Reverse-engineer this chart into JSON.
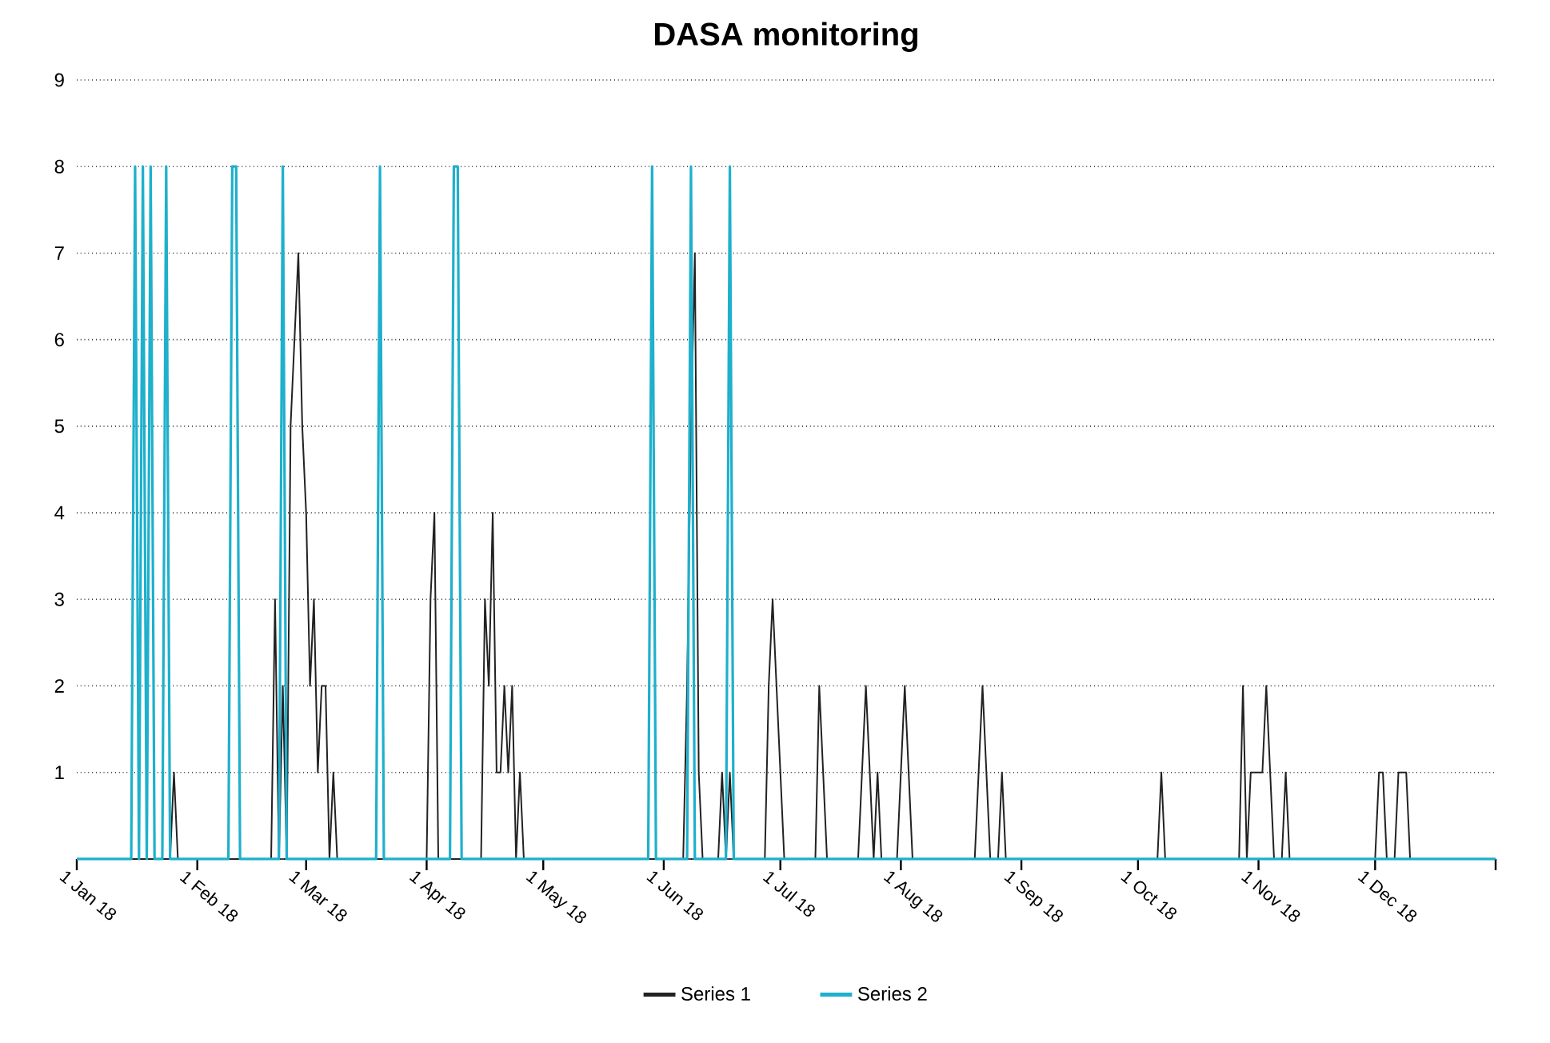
{
  "chart_data": {
    "type": "line",
    "title": "DASA monitoring",
    "xlim": [
      "2018-01-01",
      "2019-01-01"
    ],
    "xticks": [
      {
        "value": "2018-01-01",
        "label": "1 Jan 18"
      },
      {
        "value": "2018-02-01",
        "label": "1 Feb 18"
      },
      {
        "value": "2018-03-01",
        "label": "1 Mar 18"
      },
      {
        "value": "2018-04-01",
        "label": "1 Apr 18"
      },
      {
        "value": "2018-05-01",
        "label": "1 May 18"
      },
      {
        "value": "2018-06-01",
        "label": "1 Jun 18"
      },
      {
        "value": "2018-07-01",
        "label": "1 Jul 18"
      },
      {
        "value": "2018-08-01",
        "label": "1 Aug 18"
      },
      {
        "value": "2018-09-01",
        "label": "1 Sep 18"
      },
      {
        "value": "2018-10-01",
        "label": "1 Oct 18"
      },
      {
        "value": "2018-11-01",
        "label": "1 Nov 18"
      },
      {
        "value": "2018-12-01",
        "label": "1 Dec 18"
      },
      {
        "value": "2019-01-01",
        "label": null
      }
    ],
    "ylim": [
      0,
      9
    ],
    "yticks": [
      {
        "value": 0,
        "label": null
      },
      1,
      2,
      3,
      4,
      5,
      6,
      7,
      8,
      9
    ],
    "grid": "y",
    "legend": "bottom",
    "series": [
      {
        "name": "Series 1",
        "color": "#222222",
        "x": [
          "2018-01-01",
          "2018-01-25",
          "2018-01-26",
          "2018-01-27",
          "2018-02-20",
          "2018-02-21",
          "2018-02-22",
          "2018-02-23",
          "2018-02-24",
          "2018-02-25",
          "2018-02-26",
          "2018-02-27",
          "2018-02-28",
          "2018-03-01",
          "2018-03-02",
          "2018-03-03",
          "2018-03-04",
          "2018-03-05",
          "2018-03-06",
          "2018-03-07",
          "2018-03-08",
          "2018-03-09",
          "2018-04-01",
          "2018-04-02",
          "2018-04-03",
          "2018-04-04",
          "2018-04-15",
          "2018-04-16",
          "2018-04-17",
          "2018-04-18",
          "2018-04-19",
          "2018-04-20",
          "2018-04-21",
          "2018-04-22",
          "2018-04-23",
          "2018-04-24",
          "2018-04-25",
          "2018-04-26",
          "2018-06-06",
          "2018-06-07",
          "2018-06-08",
          "2018-06-09",
          "2018-06-10",
          "2018-06-11",
          "2018-06-15",
          "2018-06-16",
          "2018-06-17",
          "2018-06-18",
          "2018-06-19",
          "2018-06-27",
          "2018-06-28",
          "2018-06-29",
          "2018-06-30",
          "2018-07-01",
          "2018-07-02",
          "2018-07-10",
          "2018-07-11",
          "2018-07-12",
          "2018-07-13",
          "2018-07-21",
          "2018-07-22",
          "2018-07-23",
          "2018-07-24",
          "2018-07-25",
          "2018-07-26",
          "2018-07-27",
          "2018-07-31",
          "2018-08-01",
          "2018-08-02",
          "2018-08-03",
          "2018-08-04",
          "2018-08-20",
          "2018-08-21",
          "2018-08-22",
          "2018-08-23",
          "2018-08-24",
          "2018-08-26",
          "2018-08-27",
          "2018-08-28",
          "2018-10-06",
          "2018-10-07",
          "2018-10-08",
          "2018-10-27",
          "2018-10-28",
          "2018-10-29",
          "2018-10-30",
          "2018-10-31",
          "2018-11-01",
          "2018-11-02",
          "2018-11-03",
          "2018-11-04",
          "2018-11-05",
          "2018-11-07",
          "2018-11-08",
          "2018-11-09",
          "2018-12-01",
          "2018-12-02",
          "2018-12-03",
          "2018-12-04",
          "2018-12-06",
          "2018-12-07",
          "2018-12-08",
          "2018-12-09",
          "2018-12-10",
          "2019-01-01"
        ],
        "values": [
          0,
          0,
          1,
          0,
          0,
          3,
          0,
          2,
          0,
          5,
          6,
          7,
          5,
          4,
          2,
          3,
          1,
          2,
          2,
          0,
          1,
          0,
          0,
          3,
          4,
          0,
          0,
          3,
          2,
          4,
          1,
          1,
          2,
          1,
          2,
          0,
          1,
          0,
          0,
          2,
          5,
          7,
          1,
          0,
          0,
          1,
          0,
          1,
          0,
          0,
          2,
          3,
          2,
          1,
          0,
          0,
          2,
          1,
          0,
          0,
          1,
          2,
          1,
          0,
          1,
          0,
          0,
          1,
          2,
          1,
          0,
          0,
          1,
          2,
          1,
          0,
          0,
          1,
          0,
          0,
          1,
          0,
          0,
          2,
          0,
          1,
          1,
          1,
          1,
          2,
          1,
          0,
          0,
          1,
          0,
          0,
          1,
          1,
          0,
          0,
          1,
          1,
          1,
          0,
          0
        ]
      },
      {
        "name": "Series 2",
        "color": "#1eb0cc",
        "x": [
          "2018-01-01",
          "2018-01-15",
          "2018-01-16",
          "2018-01-17",
          "2018-01-18",
          "2018-01-19",
          "2018-01-20",
          "2018-01-21",
          "2018-01-23",
          "2018-01-24",
          "2018-01-25",
          "2018-02-09",
          "2018-02-10",
          "2018-02-11",
          "2018-02-12",
          "2018-02-22",
          "2018-02-23",
          "2018-02-24",
          "2018-03-19",
          "2018-03-20",
          "2018-03-21",
          "2018-04-07",
          "2018-04-08",
          "2018-04-09",
          "2018-04-10",
          "2018-05-28",
          "2018-05-29",
          "2018-05-30",
          "2018-06-07",
          "2018-06-08",
          "2018-06-09",
          "2018-06-17",
          "2018-06-18",
          "2018-06-19",
          "2019-01-01"
        ],
        "values": [
          0,
          0,
          8,
          0,
          8,
          0,
          8,
          0,
          0,
          8,
          0,
          0,
          8,
          8,
          0,
          0,
          8,
          0,
          0,
          8,
          0,
          0,
          8,
          8,
          0,
          0,
          8,
          0,
          0,
          8,
          0,
          0,
          8,
          0,
          0
        ]
      }
    ]
  }
}
